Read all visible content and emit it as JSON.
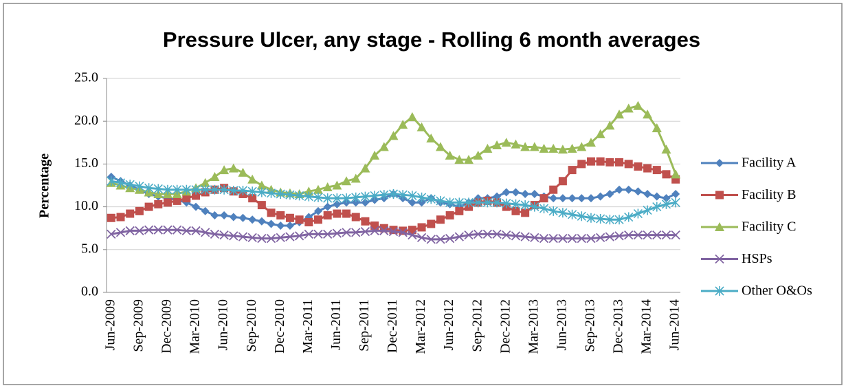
{
  "chart_data": {
    "type": "line",
    "title": "Pressure Ulcer, any stage - Rolling 6 month averages",
    "y_label": "Percentage",
    "categories": [
      "Jun-2009",
      null,
      null,
      "Sep-2009",
      null,
      null,
      "Dec-2009",
      null,
      null,
      "Mar-2010",
      null,
      null,
      "Jun-2010",
      null,
      null,
      "Sep-2010",
      null,
      null,
      "Dec-2010",
      null,
      null,
      "Mar-2011",
      null,
      null,
      "Jun-2011",
      null,
      null,
      "Sep-2011",
      null,
      null,
      "Dec-2011",
      null,
      null,
      "Mar-2012",
      null,
      null,
      "Jun-2012",
      null,
      null,
      "Sep-2012",
      null,
      null,
      "Dec-2012",
      null,
      null,
      "Mar-2013",
      null,
      null,
      "Jun-2013",
      null,
      null,
      "Sep-2013",
      null,
      null,
      "Dec-2013",
      null,
      null,
      "Mar-2014",
      null,
      null,
      "Jun-2014"
    ],
    "series": [
      {
        "name": "Facility A",
        "color": "#4f81bd",
        "marker": "diamond",
        "values": [
          13.5,
          13,
          12.5,
          12,
          11.5,
          11.2,
          11,
          10.8,
          10.5,
          10,
          9.5,
          9,
          9,
          8.8,
          8.7,
          8.5,
          8.3,
          8,
          7.8,
          7.8,
          8.2,
          8.8,
          9.5,
          10,
          10.3,
          10.5,
          10.5,
          10.5,
          10.8,
          11,
          11.5,
          11,
          10.5,
          10.5,
          11,
          10.5,
          10.3,
          10,
          10.5,
          11,
          11,
          11.2,
          11.7,
          11.7,
          11.5,
          11.5,
          11.2,
          11,
          11,
          11,
          11,
          11,
          11.2,
          11.5,
          12,
          12,
          11.8,
          11.5,
          11.2,
          11,
          11.5
        ]
      },
      {
        "name": "Facility B",
        "color": "#c0504d",
        "marker": "square",
        "values": [
          8.7,
          8.8,
          9.2,
          9.5,
          10,
          10.3,
          10.5,
          10.7,
          11,
          11.3,
          11.7,
          12,
          12.2,
          11.8,
          11.5,
          11,
          10.2,
          9.3,
          9,
          8.7,
          8.5,
          8.2,
          8.5,
          9,
          9.2,
          9.2,
          8.8,
          8.3,
          7.8,
          7.5,
          7.3,
          7.2,
          7.3,
          7.6,
          8,
          8.5,
          9,
          9.5,
          10,
          10.5,
          10.7,
          10.5,
          10,
          9.5,
          9.3,
          10.2,
          11,
          12,
          13,
          14.3,
          15,
          15.3,
          15.3,
          15.2,
          15.2,
          15,
          14.7,
          14.5,
          14.3,
          13.8,
          13.2
        ]
      },
      {
        "name": "Facility C",
        "color": "#9bbb59",
        "marker": "triangle",
        "values": [
          12.8,
          12.5,
          12.2,
          12,
          11.7,
          11.5,
          11.5,
          11.5,
          11.8,
          12.2,
          12.8,
          13.5,
          14.3,
          14.5,
          14,
          13.2,
          12.5,
          12,
          11.7,
          11.6,
          11.5,
          11.8,
          12,
          12.3,
          12.5,
          13,
          13.3,
          14.5,
          16,
          17,
          18.3,
          19.6,
          20.5,
          19.3,
          18,
          17,
          16,
          15.5,
          15.5,
          16,
          16.8,
          17.2,
          17.5,
          17.3,
          17,
          17,
          16.8,
          16.8,
          16.7,
          16.8,
          17,
          17.5,
          18.5,
          19.5,
          20.8,
          21.5,
          21.8,
          20.8,
          19.2,
          16.7,
          13.8
        ]
      },
      {
        "name": "HSPs",
        "color": "#8064a2",
        "marker": "x",
        "values": [
          6.8,
          7,
          7.2,
          7.2,
          7.3,
          7.3,
          7.3,
          7.3,
          7.2,
          7.2,
          7,
          6.8,
          6.7,
          6.6,
          6.5,
          6.4,
          6.3,
          6.3,
          6.4,
          6.5,
          6.6,
          6.8,
          6.8,
          6.8,
          6.9,
          7,
          7,
          7.1,
          7.2,
          7.2,
          7.1,
          7,
          6.7,
          6.4,
          6.2,
          6.2,
          6.3,
          6.5,
          6.7,
          6.8,
          6.8,
          6.8,
          6.7,
          6.6,
          6.5,
          6.4,
          6.3,
          6.3,
          6.3,
          6.3,
          6.3,
          6.3,
          6.4,
          6.5,
          6.6,
          6.7,
          6.7,
          6.7,
          6.7,
          6.7,
          6.7
        ]
      },
      {
        "name": "Other O&Os",
        "color": "#4bacc6",
        "marker": "star",
        "values": [
          13,
          12.8,
          12.6,
          12.4,
          12.2,
          12.1,
          12,
          12,
          12,
          12,
          12,
          12,
          12,
          11.9,
          11.9,
          11.8,
          11.7,
          11.6,
          11.5,
          11.4,
          11.3,
          11.2,
          11.1,
          11,
          11,
          11,
          11.1,
          11.2,
          11.3,
          11.4,
          11.5,
          11.4,
          11.3,
          11.1,
          10.9,
          10.7,
          10.5,
          10.5,
          10.5,
          10.5,
          10.5,
          10.5,
          10.4,
          10.3,
          10.2,
          10,
          9.8,
          9.5,
          9.3,
          9.1,
          8.9,
          8.7,
          8.6,
          8.5,
          8.5,
          8.8,
          9.2,
          9.6,
          10,
          10.3,
          10.5
        ]
      }
    ],
    "ylim": [
      0,
      25
    ],
    "yticks": [
      {
        "value": 0,
        "label": "0.0"
      },
      {
        "value": 5,
        "label": "5.0"
      },
      {
        "value": 10,
        "label": "10.0"
      },
      {
        "value": 15,
        "label": "15.0"
      },
      {
        "value": 20,
        "label": "20.0"
      },
      {
        "value": 25,
        "label": "25.0"
      }
    ],
    "grid": true,
    "legend": "right"
  }
}
